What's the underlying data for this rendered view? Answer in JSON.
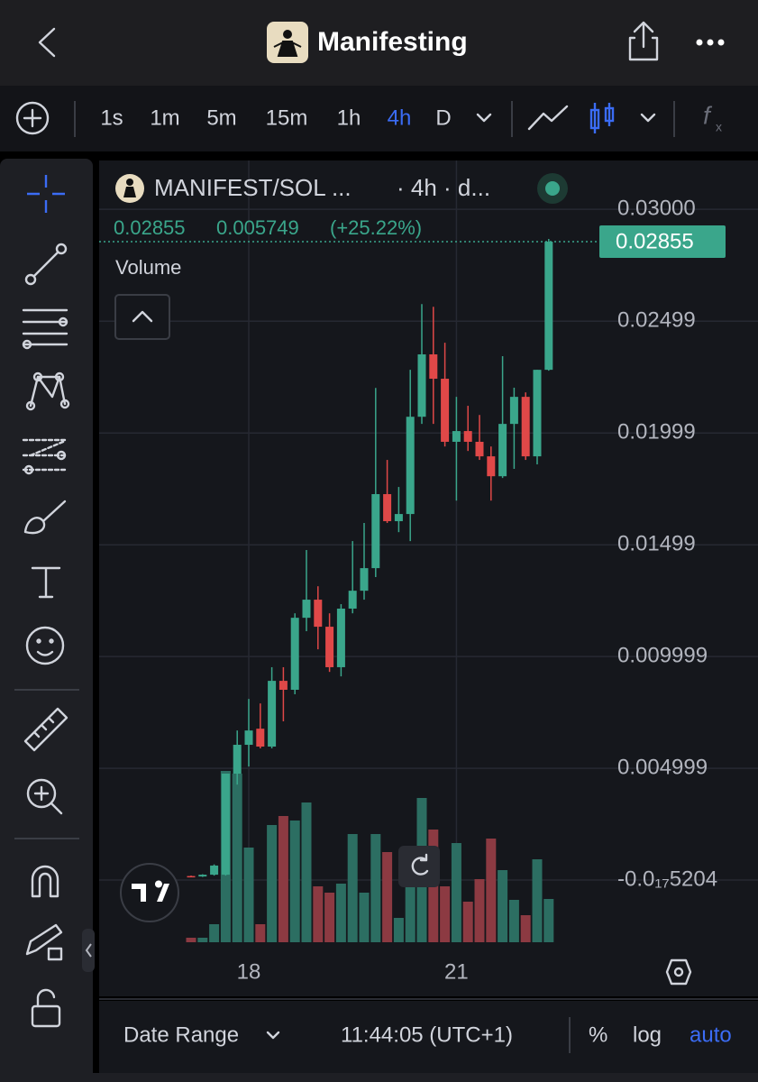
{
  "app": {
    "title": "Manifesting",
    "timeframes": [
      "1s",
      "1m",
      "5m",
      "15m",
      "1h",
      "4h",
      "D"
    ],
    "active_timeframe": 5
  },
  "chart_data": {
    "type": "candlestick",
    "title": "MANIFEST/SOL ...",
    "subtitle": "· 4h · d...",
    "change": 0.005749,
    "change_percent": "(+25.22%)",
    "volume_label": "Volume",
    "categories": [
      null,
      null,
      null,
      null,
      null,
      "18",
      null,
      null,
      null,
      null,
      null,
      null,
      null,
      null,
      null,
      null,
      null,
      null,
      null,
      null,
      null,
      null,
      null,
      "21",
      null,
      null,
      null,
      null,
      null,
      null,
      null,
      null
    ],
    "open": [
      0.00018,
      0.00016,
      0.00024,
      0.00024,
      0.00476,
      0.00605,
      0.00677,
      0.00597,
      0.00891,
      0.00851,
      0.01173,
      0.01254,
      0.01133,
      0.00952,
      0.01214,
      0.01294,
      0.01395,
      0.01726,
      0.01605,
      0.01637,
      0.02072,
      0.02351,
      0.02242,
      0.0196,
      0.02008,
      0.0196,
      0.01895,
      0.01806,
      0.0204,
      0.02161,
      0.01895,
      0.02282
    ],
    "high": [
      0.0002,
      0.00026,
      0.0007,
      0.00476,
      0.00669,
      0.0081,
      0.0079,
      0.00952,
      0.00952,
      0.01193,
      0.01476,
      0.01314,
      0.01193,
      0.01234,
      0.01516,
      0.01597,
      0.02201,
      0.01879,
      0.01758,
      0.02282,
      0.02576,
      0.02564,
      0.02403,
      0.02161,
      0.02121,
      0.0208,
      0.01939,
      0.02343,
      0.02202,
      0.02181,
      0.02282,
      0.02867
    ],
    "low": [
      0.00014,
      0.00014,
      0.0002,
      0.0002,
      0.00427,
      0.00508,
      0.00589,
      0.00589,
      0.0071,
      0.00831,
      0.01113,
      0.01032,
      0.00931,
      0.00911,
      0.01193,
      0.01254,
      0.01355,
      0.01597,
      0.01556,
      0.01516,
      0.0204,
      0.0204,
      0.01939,
      0.01697,
      0.01919,
      0.01879,
      0.01697,
      0.01798,
      0.01839,
      0.01879,
      0.01859,
      0.02278
    ],
    "close": [
      0.00016,
      0.00024,
      0.00065,
      0.00476,
      0.00605,
      0.00669,
      0.00597,
      0.00891,
      0.00851,
      0.01173,
      0.01254,
      0.01133,
      0.00952,
      0.01214,
      0.01294,
      0.01395,
      0.01726,
      0.01605,
      0.01637,
      0.02072,
      0.02351,
      0.02242,
      0.0196,
      0.02008,
      0.0196,
      0.01895,
      0.01806,
      0.0204,
      0.02161,
      0.01895,
      0.02282,
      0.02855
    ],
    "volume": [
      5,
      5,
      20,
      190,
      187,
      105,
      20,
      130,
      140,
      135,
      155,
      62,
      55,
      65,
      120,
      55,
      120,
      100,
      27,
      90,
      160,
      125,
      62,
      110,
      45,
      70,
      115,
      80,
      47,
      30,
      92,
      48
    ],
    "up_color": "#3aa68b",
    "down_color": "#e04848",
    "volume_up_color": "#2c6e62",
    "volume_down_color": "#8c3a42",
    "ylim": [
      -0.00278,
      0.03218
    ],
    "yticks": [
      {
        "value": 0.03,
        "label": "0.03000"
      },
      0.02499,
      0.01999,
      0.01499,
      0.009999,
      0.004999,
      {
        "value": -5.204e-18,
        "label": "-0.0₁₇5204"
      }
    ],
    "grid": true
  },
  "footer": {
    "date_range": "Date Range",
    "time": "11:44:05 (UTC+1)",
    "percent": "%",
    "log": "log",
    "auto": "auto"
  }
}
